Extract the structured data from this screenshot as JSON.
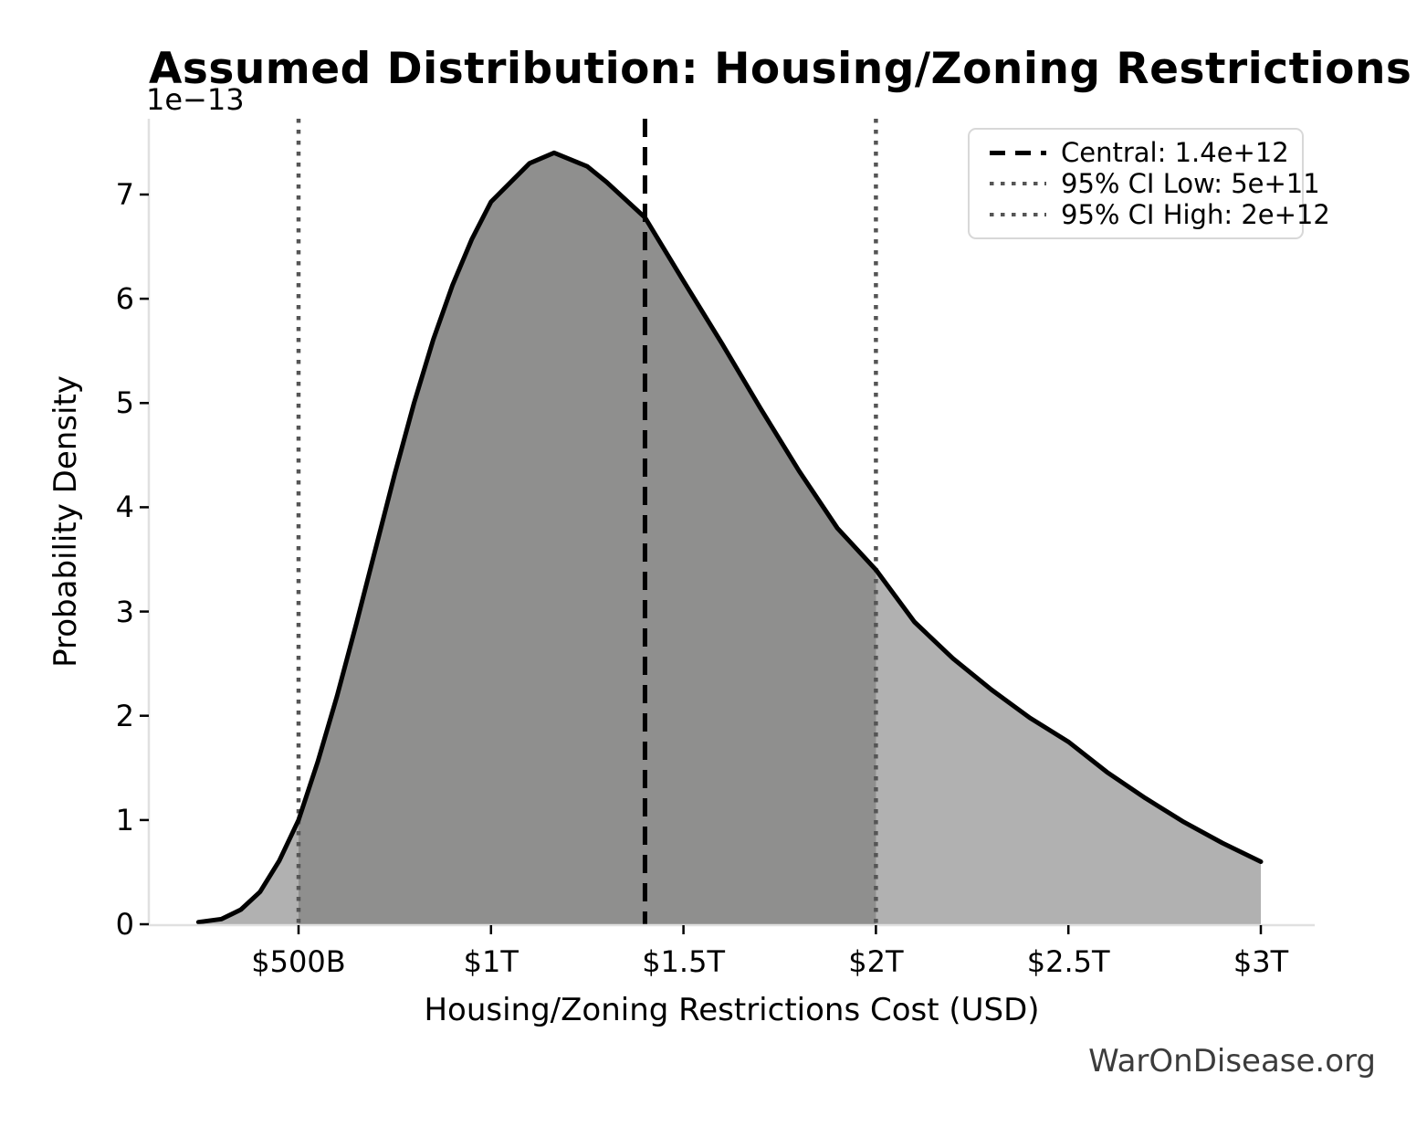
{
  "title": "Assumed Distribution: Housing/Zoning Restrictions Cost",
  "axes": {
    "x_label": "Housing/Zoning Restrictions Cost (USD)",
    "y_label": "Probability Density",
    "y_offset_text": "1e−13",
    "x_tick_labels": [
      "$500B",
      "$1T",
      "$1.5T",
      "$2T",
      "$2.5T",
      "$3T"
    ],
    "y_tick_labels": [
      "0",
      "1",
      "2",
      "3",
      "4",
      "5",
      "6",
      "7"
    ]
  },
  "legend": {
    "items": [
      {
        "label": "Central: 1.4e+12",
        "style": "dashed",
        "color": "#000000"
      },
      {
        "label": "95% CI Low: 5e+11",
        "style": "dotted",
        "color": "#555555"
      },
      {
        "label": "95% CI High: 2e+12",
        "style": "dotted",
        "color": "#555555"
      }
    ]
  },
  "watermark": "WarOnDisease.org",
  "colors": {
    "curve": "#000000",
    "area_fill": "#b1b1b1",
    "ci_fill": "#8f8f8e",
    "central_line": "#000000",
    "ci_line": "#555555",
    "spine": "#e0e0e0",
    "tick": "#000000"
  },
  "chart_data": {
    "type": "area",
    "title": "Assumed Distribution: Housing/Zoning Restrictions Cost",
    "xlabel": "Housing/Zoning Restrictions Cost (USD)",
    "ylabel": "Probability Density",
    "y_scale_factor": "1e-13",
    "grid": false,
    "legend_position": "upper right",
    "central_usd": 1400000000000.0,
    "ci_low_usd": 500000000000.0,
    "ci_high_usd": 2000000000000.0,
    "x_tick_values_billions": [
      500,
      1000,
      1500,
      2000,
      2500,
      3000
    ],
    "y_tick_values_1e13": [
      0,
      1,
      2,
      3,
      4,
      5,
      6,
      7
    ],
    "xlim_billions": [
      110,
      3140
    ],
    "ylim_1e13": [
      0,
      7.73
    ],
    "curve_x_billions": [
      240,
      300,
      350,
      400,
      450,
      500,
      550,
      600,
      650,
      700,
      750,
      800,
      850,
      900,
      950,
      1000,
      1100,
      1164,
      1250,
      1300,
      1400,
      1500,
      1600,
      1700,
      1800,
      1900,
      2000,
      2100,
      2200,
      2300,
      2400,
      2500,
      2600,
      2700,
      2800,
      2900,
      3000
    ],
    "curve_density_1e13": [
      0.02,
      0.05,
      0.14,
      0.31,
      0.61,
      1.0,
      1.56,
      2.19,
      2.88,
      3.6,
      4.32,
      5.0,
      5.61,
      6.13,
      6.57,
      6.93,
      7.3,
      7.4,
      7.27,
      7.12,
      6.78,
      6.17,
      5.57,
      4.95,
      4.35,
      3.8,
      3.4,
      2.9,
      2.55,
      2.25,
      1.98,
      1.75,
      1.46,
      1.21,
      0.98,
      0.78,
      0.6
    ],
    "mode_billions": 1164,
    "peak_density_1e13": 7.4
  }
}
